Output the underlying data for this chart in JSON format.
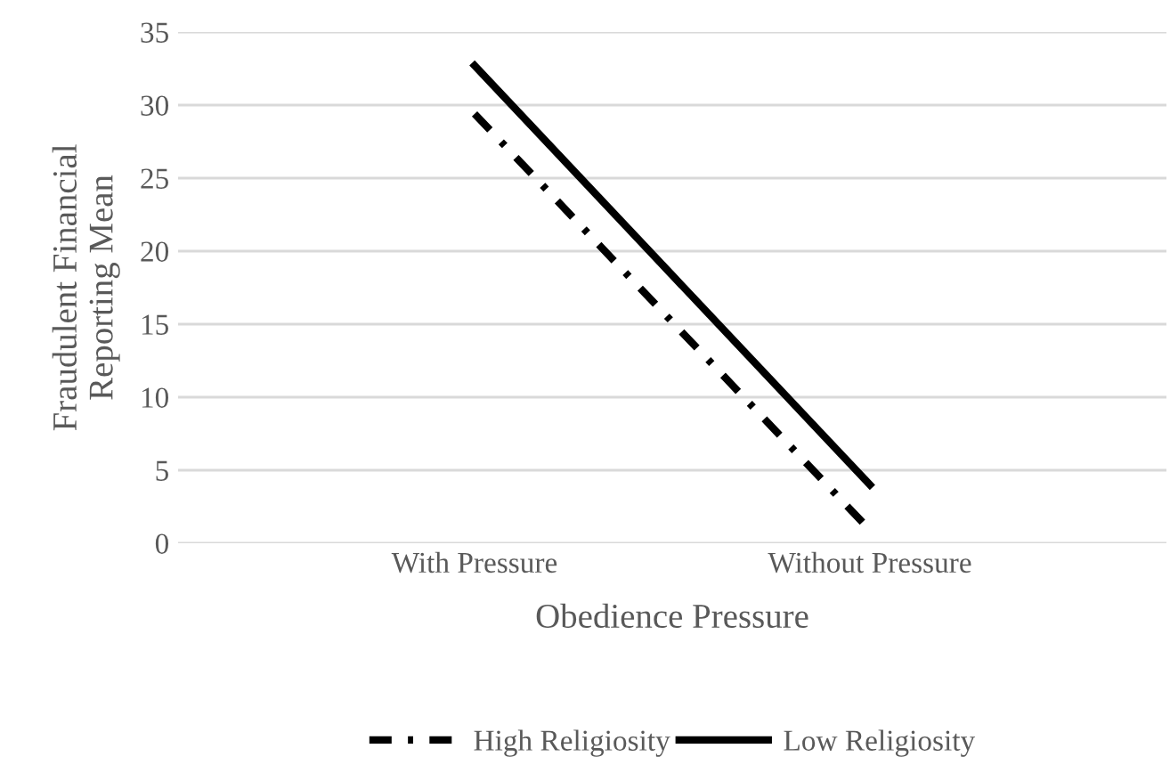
{
  "chart_data": {
    "type": "line",
    "xlabel": "Obedience Pressure",
    "ylabel": "Fraudulent Financial\nReporting Mean",
    "categories": [
      "With Pressure",
      "Without Pressure"
    ],
    "series": [
      {
        "name": "High Religiosity",
        "color": "#000000",
        "values": [
          29.4,
          0.9
        ],
        "line_style": "dashdot"
      },
      {
        "name": "Low Religiosity",
        "color": "#000000",
        "values": [
          32.7,
          4.0
        ],
        "line_style": "solid"
      }
    ],
    "ylim": [
      0,
      35
    ],
    "yticks": [
      0,
      5,
      10,
      15,
      20,
      25,
      30,
      35
    ],
    "grid": "y",
    "legend": "bottom",
    "marker": "none"
  }
}
